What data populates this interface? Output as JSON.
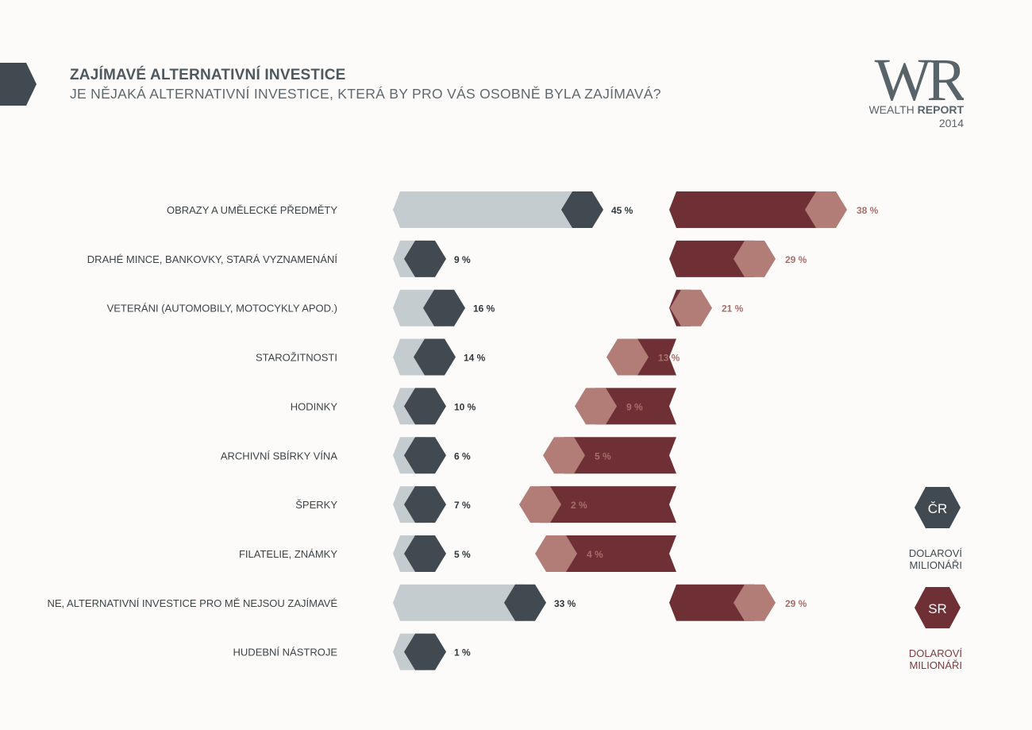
{
  "header": {
    "title": "ZAJÍMAVÉ ALTERNATIVNÍ INVESTICE",
    "subtitle": "JE NĚJAKÁ ALTERNATIVNÍ INVESTICE, KTERÁ BY PRO VÁS OSOBNĚ BYLA ZAJÍMAVÁ?"
  },
  "logo": {
    "mark": "WR",
    "line1_regular": "WEALTH",
    "line1_bold": "REPORT",
    "year": "2014"
  },
  "legend": {
    "cz_badge": "ČR",
    "cz_label_1": "DOLAROVÍ",
    "cz_label_2": "MILIONÁŘI",
    "sk_badge": "SR",
    "sk_label_1": "DOLAROVÍ",
    "sk_label_2": "MILIONÁŘI"
  },
  "colors": {
    "cz_bar": "#c5ccd0",
    "cz_hex": "#414a50",
    "cz_text": "#2f373c",
    "sk_bar": "#6e3035",
    "sk_hex": "#b37d77",
    "sk_text": "#a76f6a",
    "title": "#4e585e"
  },
  "chart_data": {
    "type": "bar",
    "categories": [
      "OBRAZY A UMĚLECKÉ PŘEDMĚTY",
      "DRAHÉ MINCE,  BANKOVKY, STARÁ  VYZNAMENÁNÍ",
      "VETERÁNI  (AUTOMOBILY,  MOTOCYKLY APOD.)",
      "STAROŽITNOSTI",
      "HODINKY",
      "ARCHIVNÍ  SBÍRKY VÍNA",
      "ŠPERKY",
      "FILATELIE,  ZNÁMKY",
      "NE, ALTERNATIVNÍ  INVESTICE  PRO MĚ NEJSOU ZAJÍMAVÉ",
      "HUDEBNÍ NÁSTROJE"
    ],
    "series": [
      {
        "name": "ČR",
        "values": [
          45,
          9,
          16,
          14,
          10,
          6,
          7,
          5,
          33,
          1
        ]
      },
      {
        "name": "SR",
        "values": [
          38,
          29,
          21,
          13,
          9,
          5,
          2,
          4,
          29,
          null
        ]
      }
    ],
    "value_labels": {
      "cz": [
        "45 %",
        "9 %",
        "16 %",
        "14 %",
        "10 %",
        "6 %",
        "7 %",
        "5 %",
        "33 %",
        "1 %"
      ],
      "sk": [
        "38 %",
        "29 %",
        "21 %",
        "13 %",
        "9 %",
        "5 %",
        "2 %",
        "4 %",
        "29 %",
        ""
      ]
    },
    "unit": "%"
  }
}
